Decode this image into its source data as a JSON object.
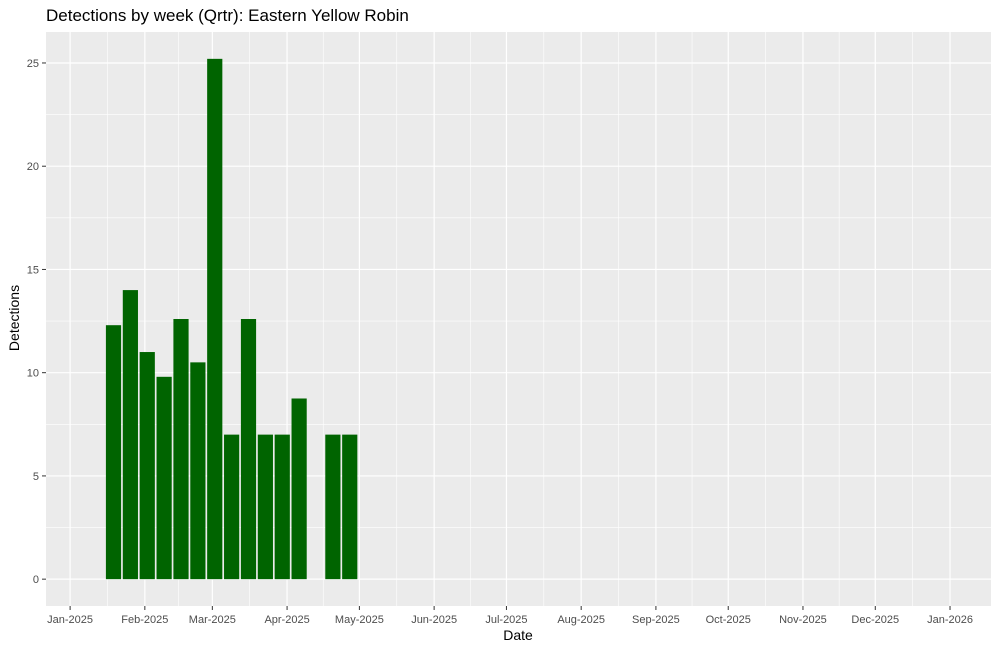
{
  "chart_data": {
    "type": "bar",
    "title": "Detections by week (Qrtr): Eastern Yellow Robin",
    "xlabel": "Date",
    "ylabel": "Detections",
    "x_axis": {
      "type": "date",
      "range": [
        "2024-12-22",
        "2026-01-18"
      ],
      "ticks": [
        {
          "date": "2025-01-01",
          "label": "Jan-2025"
        },
        {
          "date": "2025-02-01",
          "label": "Feb-2025"
        },
        {
          "date": "2025-03-01",
          "label": "Mar-2025"
        },
        {
          "date": "2025-04-01",
          "label": "Apr-2025"
        },
        {
          "date": "2025-05-01",
          "label": "May-2025"
        },
        {
          "date": "2025-06-01",
          "label": "Jun-2025"
        },
        {
          "date": "2025-07-01",
          "label": "Jul-2025"
        },
        {
          "date": "2025-08-01",
          "label": "Aug-2025"
        },
        {
          "date": "2025-09-01",
          "label": "Sep-2025"
        },
        {
          "date": "2025-10-01",
          "label": "Oct-2025"
        },
        {
          "date": "2025-11-01",
          "label": "Nov-2025"
        },
        {
          "date": "2025-12-01",
          "label": "Dec-2025"
        },
        {
          "date": "2026-01-01",
          "label": "Jan-2026"
        }
      ]
    },
    "y_axis": {
      "range": [
        -1.3,
        26.5
      ],
      "ticks": [
        0,
        5,
        10,
        15,
        20,
        25
      ]
    },
    "grid": true,
    "bar_color": "#006400",
    "panel_color": "#ebebeb",
    "grid_color": "#ffffff",
    "bar_width_days": 6.3,
    "bars": [
      {
        "x": "2025-01-19",
        "y": 12.3
      },
      {
        "x": "2025-01-26",
        "y": 14.0
      },
      {
        "x": "2025-02-02",
        "y": 11.0
      },
      {
        "x": "2025-02-09",
        "y": 9.8
      },
      {
        "x": "2025-02-16",
        "y": 12.6
      },
      {
        "x": "2025-02-23",
        "y": 10.5
      },
      {
        "x": "2025-03-02",
        "y": 25.2
      },
      {
        "x": "2025-03-09",
        "y": 7.0
      },
      {
        "x": "2025-03-16",
        "y": 12.6
      },
      {
        "x": "2025-03-23",
        "y": 7.0
      },
      {
        "x": "2025-03-30",
        "y": 7.0
      },
      {
        "x": "2025-04-06",
        "y": 8.75
      },
      {
        "x": "2025-04-20",
        "y": 7.0
      },
      {
        "x": "2025-04-27",
        "y": 7.0
      }
    ]
  }
}
